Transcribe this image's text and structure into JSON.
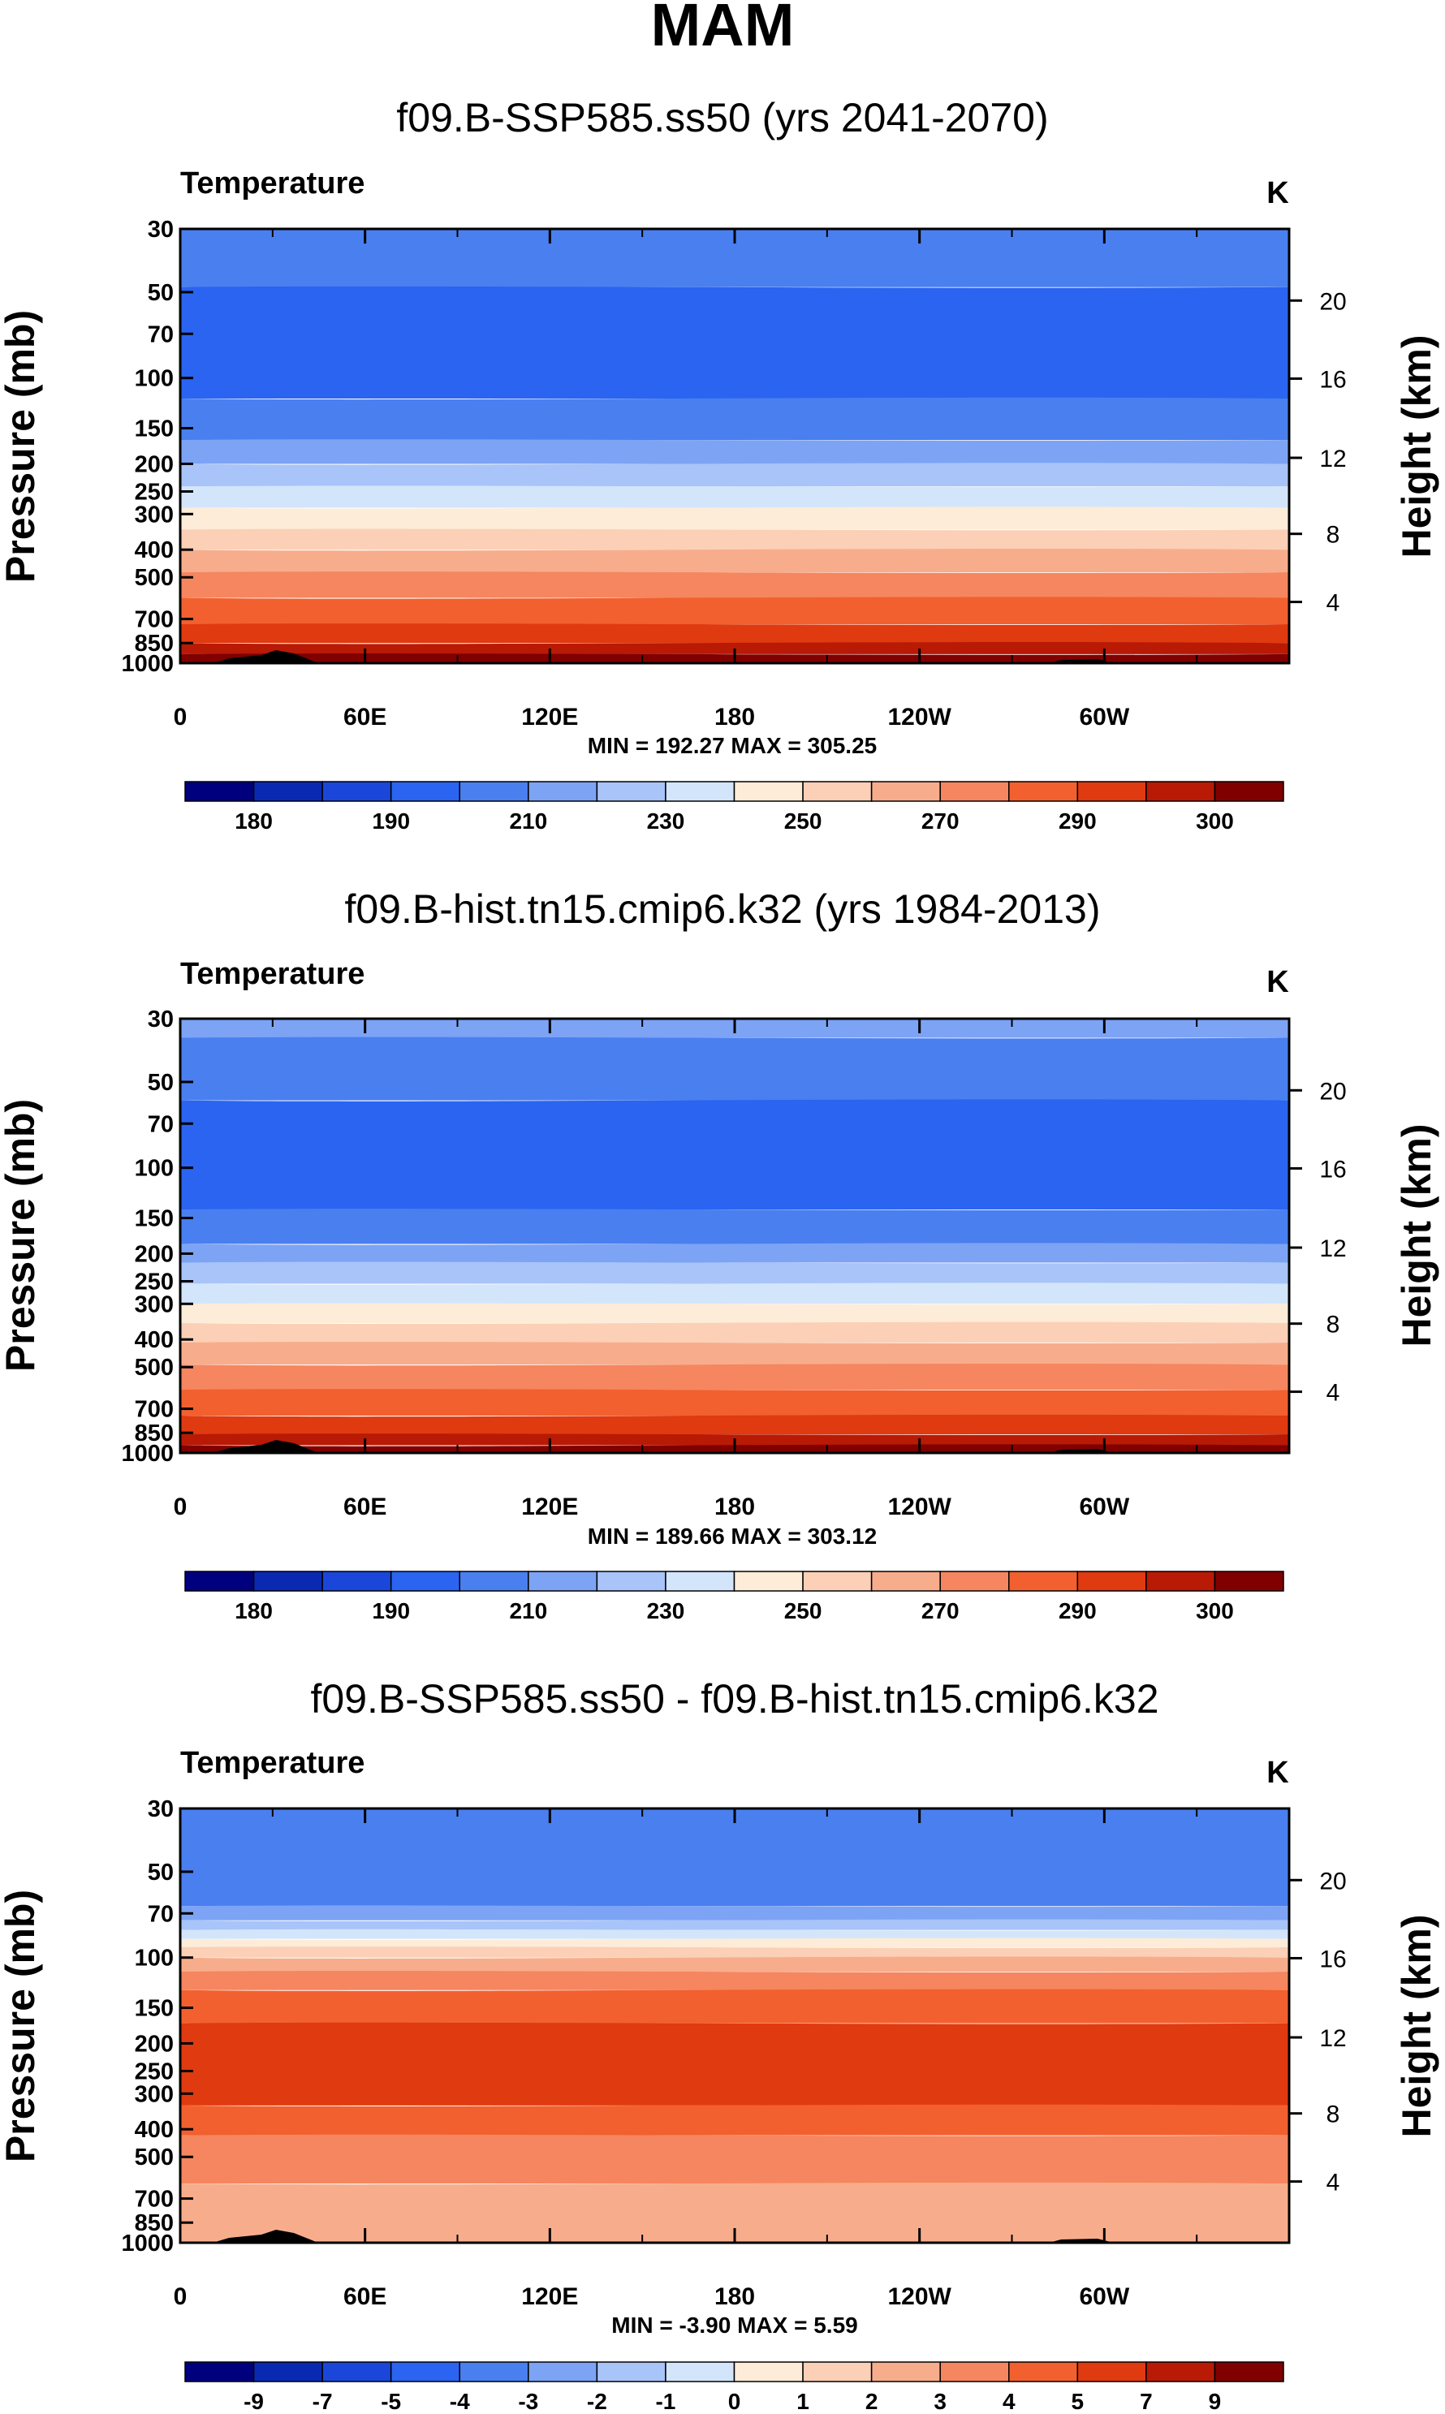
{
  "figure": {
    "title": "MAM"
  },
  "colors": {
    "abs_palette": [
      "#00007f",
      "#0a29b3",
      "#1a47d9",
      "#2a64f0",
      "#4a7ff0",
      "#7da3f5",
      "#a8c4f8",
      "#d3e5fb",
      "#fdecd8",
      "#fcd0b6",
      "#f7ad8c",
      "#f58660",
      "#f2602f",
      "#e03a10",
      "#b81a05",
      "#800000"
    ],
    "diff_palette": [
      "#00007f",
      "#0a29b3",
      "#1a47d9",
      "#2a64f0",
      "#4a7ff0",
      "#7da3f5",
      "#a8c4f8",
      "#d3e5fb",
      "#fdecd8",
      "#fcd0b6",
      "#f7ad8c",
      "#f58660",
      "#f2602f",
      "#e03a10",
      "#b81a05",
      "#800000"
    ],
    "terrain": "#000000"
  },
  "chart_data": [
    {
      "type": "contour",
      "subtitle": "f09.B-SSP585.ss50 (yrs 2041-2070)",
      "variable": "Temperature",
      "units": "K",
      "ylabel": "Pressure (mb)",
      "ylabel_right": "Height (km)",
      "pressure_ticks": [
        "30",
        "50",
        "70",
        "100",
        "150",
        "200",
        "250",
        "300",
        "400",
        "500",
        "700",
        "850",
        "1000"
      ],
      "height_ticks": [
        "20",
        "16",
        "12",
        "8",
        "4"
      ],
      "x_ticks": [
        "0",
        "60E",
        "120E",
        "180",
        "120W",
        "60W"
      ],
      "stats": "MIN = 192.27  MAX = 305.25",
      "colorbar_labels": [
        "180",
        "190",
        "210",
        "230",
        "250",
        "270",
        "290",
        "300"
      ],
      "bands": [
        {
          "p_top": 30,
          "p_bot": 48,
          "level": 4
        },
        {
          "p_top": 48,
          "p_bot": 118,
          "level": 3
        },
        {
          "p_top": 118,
          "p_bot": 165,
          "level": 4
        },
        {
          "p_top": 165,
          "p_bot": 200,
          "level": 5
        },
        {
          "p_top": 200,
          "p_bot": 240,
          "level": 6
        },
        {
          "p_top": 240,
          "p_bot": 285,
          "level": 7
        },
        {
          "p_top": 285,
          "p_bot": 340,
          "level": 8
        },
        {
          "p_top": 340,
          "p_bot": 400,
          "level": 9
        },
        {
          "p_top": 400,
          "p_bot": 480,
          "level": 10
        },
        {
          "p_top": 480,
          "p_bot": 590,
          "level": 11
        },
        {
          "p_top": 590,
          "p_bot": 730,
          "level": 12
        },
        {
          "p_top": 730,
          "p_bot": 850,
          "level": 13
        },
        {
          "p_top": 850,
          "p_bot": 930,
          "level": 14
        },
        {
          "p_top": 930,
          "p_bot": 1000,
          "level": 15
        }
      ]
    },
    {
      "type": "contour",
      "subtitle": "f09.B-hist.tn15.cmip6.k32 (yrs 1984-2013)",
      "variable": "Temperature",
      "units": "K",
      "ylabel": "Pressure (mb)",
      "ylabel_right": "Height (km)",
      "pressure_ticks": [
        "30",
        "50",
        "70",
        "100",
        "150",
        "200",
        "250",
        "300",
        "400",
        "500",
        "700",
        "850",
        "1000"
      ],
      "height_ticks": [
        "20",
        "16",
        "12",
        "8",
        "4"
      ],
      "x_ticks": [
        "0",
        "60E",
        "120E",
        "180",
        "120W",
        "60W"
      ],
      "stats": "MIN = 189.66  MAX = 303.12",
      "colorbar_labels": [
        "180",
        "190",
        "210",
        "230",
        "250",
        "270",
        "290",
        "300"
      ],
      "bands": [
        {
          "p_top": 30,
          "p_bot": 35,
          "level": 5
        },
        {
          "p_top": 35,
          "p_bot": 58,
          "level": 4
        },
        {
          "p_top": 58,
          "p_bot": 140,
          "level": 3
        },
        {
          "p_top": 140,
          "p_bot": 185,
          "level": 4
        },
        {
          "p_top": 185,
          "p_bot": 215,
          "level": 5
        },
        {
          "p_top": 215,
          "p_bot": 255,
          "level": 6
        },
        {
          "p_top": 255,
          "p_bot": 300,
          "level": 7
        },
        {
          "p_top": 300,
          "p_bot": 350,
          "level": 8
        },
        {
          "p_top": 350,
          "p_bot": 410,
          "level": 9
        },
        {
          "p_top": 410,
          "p_bot": 490,
          "level": 10
        },
        {
          "p_top": 490,
          "p_bot": 600,
          "level": 11
        },
        {
          "p_top": 600,
          "p_bot": 740,
          "level": 12
        },
        {
          "p_top": 740,
          "p_bot": 860,
          "level": 13
        },
        {
          "p_top": 860,
          "p_bot": 940,
          "level": 14
        },
        {
          "p_top": 940,
          "p_bot": 1000,
          "level": 15
        }
      ]
    },
    {
      "type": "contour",
      "subtitle": "f09.B-SSP585.ss50 - f09.B-hist.tn15.cmip6.k32",
      "variable": "Temperature",
      "units": "K",
      "ylabel": "Pressure (mb)",
      "ylabel_right": "Height (km)",
      "pressure_ticks": [
        "30",
        "50",
        "70",
        "100",
        "150",
        "200",
        "250",
        "300",
        "400",
        "500",
        "700",
        "850",
        "1000"
      ],
      "height_ticks": [
        "20",
        "16",
        "12",
        "8",
        "4"
      ],
      "x_ticks": [
        "0",
        "60E",
        "120E",
        "180",
        "120W",
        "60W"
      ],
      "stats": "MIN = -3.90  MAX =  5.59",
      "colorbar_labels": [
        "-9",
        "-7",
        "-5",
        "-4",
        "-3",
        "-2",
        "-1",
        "0",
        "1",
        "2",
        "3",
        "4",
        "5",
        "7",
        "9"
      ],
      "bands": [
        {
          "p_top": 30,
          "p_bot": 66,
          "level": 4
        },
        {
          "p_top": 66,
          "p_bot": 74,
          "level": 5
        },
        {
          "p_top": 74,
          "p_bot": 80,
          "level": 6
        },
        {
          "p_top": 80,
          "p_bot": 86,
          "level": 7
        },
        {
          "p_top": 86,
          "p_bot": 92,
          "level": 8
        },
        {
          "p_top": 92,
          "p_bot": 100,
          "level": 9
        },
        {
          "p_top": 100,
          "p_bot": 112,
          "level": 10
        },
        {
          "p_top": 112,
          "p_bot": 130,
          "level": 11
        },
        {
          "p_top": 130,
          "p_bot": 170,
          "level": 12
        },
        {
          "p_top": 170,
          "p_bot": 330,
          "level": 13
        },
        {
          "p_top": 330,
          "p_bot": 420,
          "level": 12
        },
        {
          "p_top": 420,
          "p_bot": 620,
          "level": 11
        },
        {
          "p_top": 620,
          "p_bot": 1000,
          "level": 10
        }
      ]
    }
  ]
}
